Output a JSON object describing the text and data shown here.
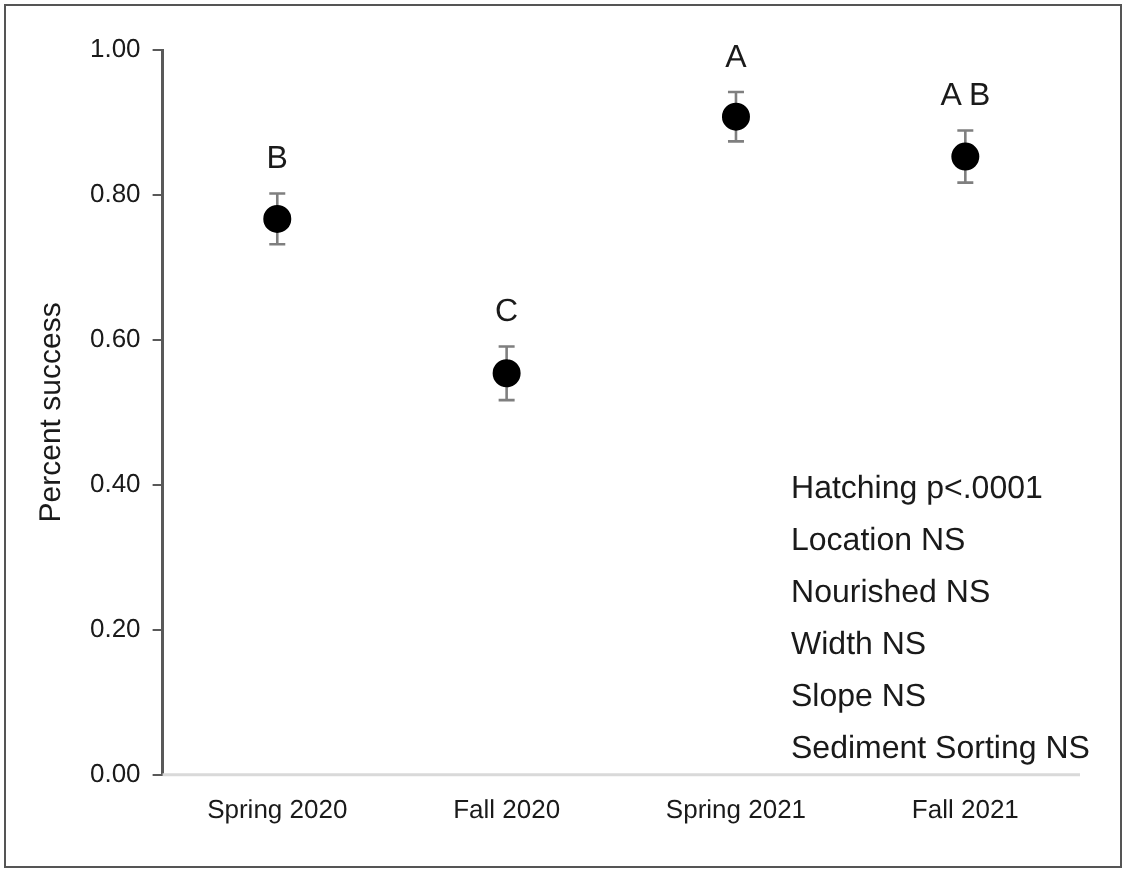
{
  "chart_data": {
    "type": "scatter",
    "ylabel": "Percent success",
    "categories": [
      "Spring 2020",
      "Fall 2020",
      "Spring 2021",
      "Fall 2021"
    ],
    "series": [
      {
        "color": "#000000",
        "values": [
          0.767,
          0.554,
          0.908,
          0.853
        ],
        "errors": [
          0.035,
          0.037,
          0.034,
          0.036
        ]
      }
    ],
    "ylim": [
      0,
      1
    ],
    "yticks": [
      {
        "value": 0,
        "label": "0.00"
      },
      {
        "value": 0.2,
        "label": "0.20"
      },
      {
        "value": 0.4,
        "label": "0.40"
      },
      {
        "value": 0.6,
        "label": "0.60"
      },
      {
        "value": 0.8,
        "label": "0.80"
      },
      {
        "value": 1,
        "label": "1.00"
      }
    ],
    "grid": false,
    "legend": false,
    "marker": "circle",
    "annotations": [
      {
        "text": "B",
        "x": "Spring 2020",
        "y": 0.767
      },
      {
        "text": "C",
        "x": "Fall 2020",
        "y": 0.554
      },
      {
        "text": "A",
        "x": "Spring 2021",
        "y": 0.908
      },
      {
        "text": "A B",
        "x": "Fall 2021",
        "y": 0.853
      },
      "Hatching p<.0001",
      "Location NS",
      "Nourished NS",
      "Width NS",
      "Slope NS",
      "Sediment Sorting NS"
    ]
  }
}
